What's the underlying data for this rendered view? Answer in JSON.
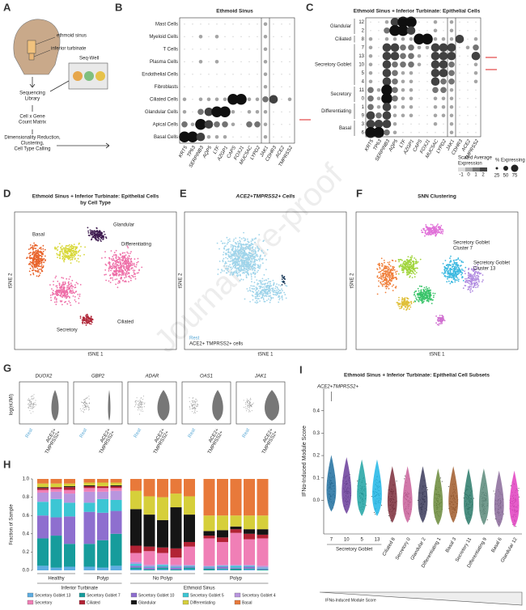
{
  "watermark": "Journal Pre-proof",
  "panel_a": {
    "label": "A",
    "ethmoid": "ethmoid sinus",
    "turbinate": "inferior turbinate",
    "seqwell": "Seq-Well",
    "library": [
      "Sequencing",
      "Library"
    ],
    "matrix": [
      "Cell x Gene",
      "Count Matrix"
    ],
    "calling": [
      "Dimensionality Reduction,",
      "Clustering,",
      "Cell Type Calling"
    ]
  },
  "panel_b": {
    "label": "B",
    "title": "Ethmoid Sinus",
    "rows": [
      "Mast Cells",
      "Myeloid Cells",
      "T Cells",
      "Plasma Cells",
      "Endothelial Cells",
      "Fibroblasts",
      "Ciliated Cells",
      "Glandular Cells",
      "Apical Cells",
      "Basal Cells"
    ],
    "genes": [
      "KRT5",
      "TP63",
      "SERPINB3",
      "AQP5",
      "LTF",
      "AZGP1",
      "CAPS",
      "FOXJ1",
      "MUC5AC",
      "LYPD2",
      "JAK1",
      "CDHR3",
      "ACE2",
      "TMPRSS2"
    ],
    "sizes": [
      [
        0,
        0,
        0,
        0,
        0,
        0,
        0,
        0,
        0,
        0,
        1,
        0,
        0,
        0
      ],
      [
        0,
        0,
        1,
        0,
        1,
        0,
        0,
        0,
        0,
        0,
        1,
        0,
        0,
        0
      ],
      [
        0,
        0,
        0,
        0,
        0,
        0,
        0,
        0,
        0,
        0,
        1,
        0,
        0,
        0
      ],
      [
        0,
        0,
        1,
        0,
        1,
        0,
        0,
        0,
        0,
        0,
        1,
        0,
        0,
        0
      ],
      [
        0,
        0,
        0,
        0,
        0,
        0,
        0,
        0,
        0,
        0,
        1,
        0,
        0,
        0
      ],
      [
        0,
        0,
        0,
        0,
        0,
        0,
        0,
        0,
        0,
        0,
        1,
        0,
        0,
        0
      ],
      [
        1,
        0,
        1,
        1,
        1,
        1,
        4,
        4,
        1,
        1,
        2,
        3,
        0,
        1
      ],
      [
        1,
        0,
        2,
        3,
        4,
        4,
        1,
        0,
        1,
        1,
        1,
        0,
        0,
        0
      ],
      [
        2,
        1,
        4,
        3,
        2,
        2,
        1,
        0,
        2,
        2,
        1,
        0,
        0,
        0
      ],
      [
        4,
        4,
        3,
        1,
        1,
        1,
        0,
        0,
        0,
        0,
        1,
        0,
        0,
        0
      ]
    ]
  },
  "panel_c": {
    "label": "C",
    "title": "Ethmoid Sinus + Inferior Turbinate: Epithelial Cells",
    "groups": [
      {
        "name": "Glandular",
        "rows": [
          "12",
          "2"
        ]
      },
      {
        "name": "Ciliated",
        "rows": [
          "8"
        ]
      },
      {
        "name": "Secretory Goblet",
        "rows": [
          "7",
          "13",
          "10",
          "5",
          "4"
        ]
      },
      {
        "name": "Secretory",
        "rows": [
          "11",
          "0"
        ]
      },
      {
        "name": "Differentiating",
        "rows": [
          "1",
          "9"
        ]
      },
      {
        "name": "Basal",
        "rows": [
          "3",
          "6"
        ]
      }
    ],
    "genes": [
      "KRT5",
      "TP63",
      "SERPINB3",
      "AQP5",
      "LTF",
      "AZGP1",
      "CAPS",
      "FOXJ1",
      "MUC5AC",
      "LYPD2",
      "JAK1",
      "CDHR3",
      "ACE2",
      "TMPRSS2"
    ],
    "sizes": [
      [
        0,
        0,
        1,
        3,
        4,
        4,
        0,
        0,
        1,
        0,
        1,
        0,
        0,
        0
      ],
      [
        0,
        0,
        2,
        4,
        4,
        3,
        0,
        0,
        1,
        0,
        1,
        0,
        0,
        0
      ],
      [
        1,
        0,
        1,
        1,
        1,
        1,
        4,
        4,
        1,
        1,
        1,
        3,
        0,
        1
      ],
      [
        1,
        0,
        3,
        3,
        2,
        2,
        1,
        1,
        3,
        3,
        3,
        0,
        1,
        2
      ],
      [
        1,
        0,
        3,
        3,
        2,
        2,
        1,
        0,
        3,
        3,
        3,
        0,
        0,
        3
      ],
      [
        1,
        0,
        3,
        2,
        2,
        2,
        1,
        0,
        3,
        3,
        2,
        0,
        0,
        1
      ],
      [
        1,
        0,
        3,
        2,
        1,
        1,
        0,
        0,
        3,
        3,
        2,
        0,
        0,
        1
      ],
      [
        1,
        0,
        3,
        2,
        1,
        1,
        0,
        0,
        3,
        2,
        2,
        0,
        0,
        1
      ],
      [
        2,
        1,
        4,
        2,
        1,
        1,
        0,
        0,
        2,
        2,
        1,
        0,
        0,
        0
      ],
      [
        2,
        1,
        4,
        2,
        1,
        1,
        0,
        0,
        1,
        1,
        1,
        0,
        0,
        0
      ],
      [
        2,
        1,
        3,
        1,
        1,
        1,
        0,
        0,
        1,
        1,
        1,
        0,
        0,
        0
      ],
      [
        3,
        2,
        3,
        1,
        1,
        1,
        0,
        0,
        1,
        1,
        1,
        0,
        0,
        0
      ],
      [
        3,
        3,
        3,
        1,
        0,
        0,
        0,
        0,
        1,
        0,
        1,
        0,
        0,
        0
      ],
      [
        4,
        4,
        2,
        1,
        0,
        0,
        0,
        0,
        0,
        0,
        1,
        0,
        0,
        0
      ]
    ],
    "legend": {
      "color_title": [
        "Scaled Average",
        "Expression"
      ],
      "color_ticks": [
        -1,
        0,
        1,
        2
      ],
      "size_title": "% Expressing",
      "size_ticks": [
        25,
        50,
        75
      ]
    }
  },
  "panel_d": {
    "label": "D",
    "title": [
      "Ethmoid Sinus + Inferior Turbinate: Epithelial Cells",
      "by Cell Type"
    ],
    "clusters": [
      "Glandular",
      "Basal",
      "Differentiating",
      "Secretory",
      "Ciliated"
    ],
    "x_label": "tSNE 1",
    "y_label": "tSNE 2"
  },
  "panel_e": {
    "label": "E",
    "title": "ACE2+TMPRSS2+ Cells",
    "legend": [
      "Rest",
      "ACE2+ TMPRSS2+ cells"
    ],
    "x_label": "tSNE 1",
    "y_label": "tSNE 2"
  },
  "panel_f": {
    "label": "F",
    "title": "SNN Clustering",
    "annotations": [
      [
        "Secretory Goblet",
        "Cluster 7"
      ],
      [
        "Secretory Goblet",
        "Cluster 13"
      ]
    ],
    "x_label": "tSNE 1",
    "y_label": "tSNE 2"
  },
  "panel_g": {
    "label": "G",
    "genes": [
      "DUOX2",
      "GBP2",
      "ADAR",
      "OAS1",
      "JAK1"
    ],
    "y_label": "log(nUMI)",
    "groups": [
      "Rest",
      [
        "ACE2+",
        "TMPRSS2+"
      ]
    ]
  },
  "panel_h": {
    "label": "H",
    "type": "bar",
    "y_label": "Fraction of Sample",
    "ylim": [
      0,
      1
    ],
    "yticks": [
      {
        "value": 0,
        "label": "0.0"
      },
      {
        "value": 0.2,
        "label": "0.2"
      },
      {
        "value": 0.4,
        "label": "0.4"
      },
      {
        "value": 0.6,
        "label": "0.6"
      },
      {
        "value": 0.8,
        "label": "0.8"
      },
      {
        "value": 1,
        "label": "1.0"
      }
    ],
    "categories": [
      null,
      null,
      null,
      null,
      null,
      null,
      null,
      null,
      null,
      null,
      null,
      null,
      null,
      null,
      null,
      null
    ],
    "subgroups": [
      "Healthy",
      "Polyp",
      "No Polyp",
      "Polyp"
    ],
    "groups": [
      "Inferior Turbinate",
      "Ethmoid Sinus"
    ],
    "series": [
      {
        "name": "Secretory Goblet 13",
        "color": "#5dade2",
        "values": [
          0.05,
          0.03,
          0.04,
          0.04,
          0.03,
          0.05,
          0.01,
          0,
          0.01,
          0,
          0.01,
          0,
          0.01,
          0,
          0.01,
          0
        ]
      },
      {
        "name": "Secretory Goblet 7",
        "color": "#169c9c",
        "values": [
          0.3,
          0.35,
          0.25,
          0.25,
          0.3,
          0.35,
          0.02,
          0.01,
          0.02,
          0.01,
          0.02,
          0.02,
          0.01,
          0.02,
          0.01,
          0.01
        ]
      },
      {
        "name": "Secretory Goblet 10",
        "color": "#8e6fcf",
        "values": [
          0.25,
          0.2,
          0.3,
          0.35,
          0.3,
          0.25,
          0.02,
          0.02,
          0.01,
          0.02,
          0.01,
          0.01,
          0.02,
          0.01,
          0.02,
          0.01
        ]
      },
      {
        "name": "Secretory Goblet 5",
        "color": "#3cc6d4",
        "values": [
          0.15,
          0.2,
          0.15,
          0.1,
          0.15,
          0.12,
          0.02,
          0.01,
          0.02,
          0.01,
          0.01,
          0.01,
          0.01,
          0.02,
          0.01,
          0.01
        ]
      },
      {
        "name": "Secretory Goblet 4",
        "color": "#b995de",
        "values": [
          0.1,
          0.08,
          0.1,
          0.12,
          0.08,
          0.1,
          0.02,
          0.02,
          0.01,
          0.02,
          0.01,
          0.01,
          0.01,
          0.01,
          0.01,
          0.02
        ]
      },
      {
        "name": "Secretory",
        "color": "#f07fb6",
        "values": [
          0.03,
          0.03,
          0.04,
          0.04,
          0.04,
          0.03,
          0.1,
          0.15,
          0.12,
          0.08,
          0.2,
          0.3,
          0.25,
          0.35,
          0.28,
          0.3
        ]
      },
      {
        "name": "Ciliated",
        "color": "#b22234",
        "values": [
          0.02,
          0.02,
          0.03,
          0.02,
          0.02,
          0.02,
          0.08,
          0.05,
          0.06,
          0.1,
          0.05,
          0.03,
          0.05,
          0.04,
          0.06,
          0.04
        ]
      },
      {
        "name": "Glandular",
        "color": "#151515",
        "values": [
          0.01,
          0,
          0.01,
          0.01,
          0,
          0.01,
          0.4,
          0.35,
          0.3,
          0.45,
          0.3,
          0.05,
          0.08,
          0.03,
          0.05,
          0.06
        ]
      },
      {
        "name": "Differentiating",
        "color": "#d6cf3a",
        "values": [
          0.04,
          0.04,
          0.03,
          0.03,
          0.04,
          0.03,
          0.2,
          0.2,
          0.25,
          0.15,
          0.2,
          0.17,
          0.16,
          0.12,
          0.15,
          0.15
        ]
      },
      {
        "name": "Basal",
        "color": "#e8793a",
        "values": [
          0.05,
          0.05,
          0.05,
          0.04,
          0.04,
          0.04,
          0.13,
          0.19,
          0.2,
          0.16,
          0.19,
          0.4,
          0.4,
          0.4,
          0.4,
          0.4
        ]
      }
    ]
  },
  "panel_i": {
    "label": "I",
    "type": "violin",
    "title": "Ethmoid Sinus + Inferior Turbinate: Epithelial Cell Subsets",
    "y_label": "IFNα-Induced Module Score",
    "ylim": [
      -0.15,
      0.5
    ],
    "yticks": [
      {
        "value": 0,
        "label": "0.0"
      },
      0.1,
      0.2,
      0.3,
      0.4
    ],
    "categories": [
      "7",
      "10",
      "5",
      "13",
      "Ciliated 8",
      "Secretory 0",
      "Glandular 2",
      "Differentiating 1",
      "Basal 3",
      "Secretory 11",
      "Differentiating 9",
      "Basal 6",
      "Glandular 12"
    ],
    "colors": [
      "#1f6f9f",
      "#6a3d9a",
      "#1fa3a3",
      "#1fb6e6",
      "#7b2d3a",
      "#c9609a",
      "#3a3a5a",
      "#6a8a3a",
      "#a05a2a",
      "#2a7a6a",
      "#5a8a7a",
      "#8a6a9a",
      "#e040c0"
    ],
    "medians": [
      0.04,
      0.03,
      0.02,
      0.02,
      -0.01,
      -0.01,
      -0.01,
      -0.02,
      -0.01,
      -0.02,
      -0.02,
      -0.03,
      -0.03
    ],
    "group_label": "Secretory Goblet",
    "annotation": "ACE2+TMPRSS2+",
    "footer": "IFNα-Induced Module Score"
  }
}
